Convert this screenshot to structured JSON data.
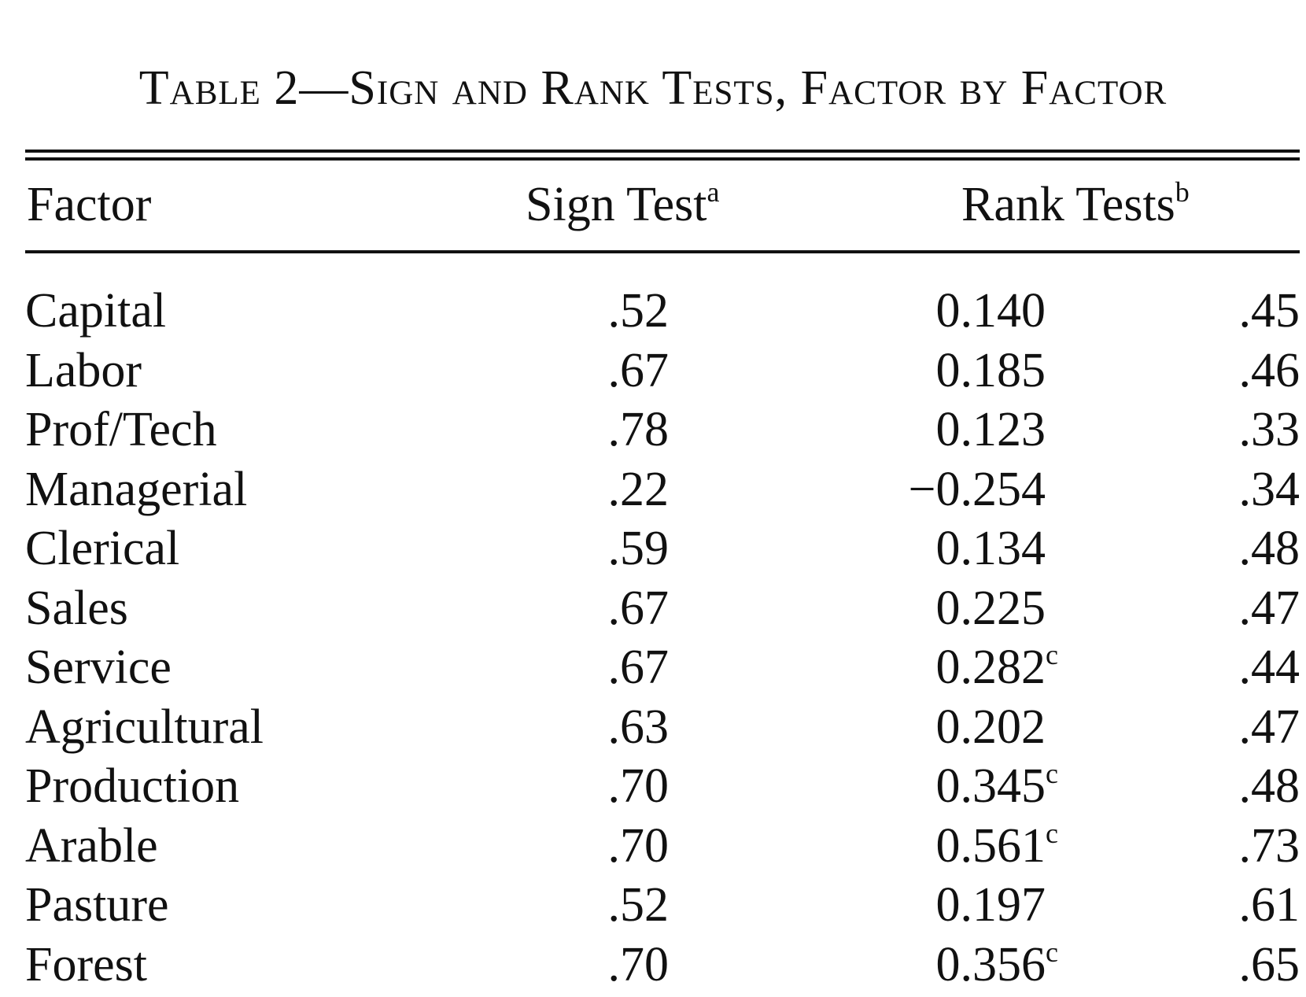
{
  "title": "Table 2—Sign and Rank Tests, Factor by Factor",
  "header": {
    "factor": "Factor",
    "sign_test": "Sign Test",
    "sign_test_note": "a",
    "rank_tests": "Rank Tests",
    "rank_tests_note": "b"
  },
  "rows": [
    {
      "factor": "Capital",
      "sign": ".52",
      "rank": "0.140",
      "rank_note": "",
      "third": ".45"
    },
    {
      "factor": "Labor",
      "sign": ".67",
      "rank": "0.185",
      "rank_note": "",
      "third": ".46"
    },
    {
      "factor": "Prof/Tech",
      "sign": ".78",
      "rank": "0.123",
      "rank_note": "",
      "third": ".33"
    },
    {
      "factor": "Managerial",
      "sign": ".22",
      "rank": "−0.254",
      "rank_note": "",
      "third": ".34"
    },
    {
      "factor": "Clerical",
      "sign": ".59",
      "rank": "0.134",
      "rank_note": "",
      "third": ".48"
    },
    {
      "factor": "Sales",
      "sign": ".67",
      "rank": "0.225",
      "rank_note": "",
      "third": ".47"
    },
    {
      "factor": "Service",
      "sign": ".67",
      "rank": "0.282",
      "rank_note": "c",
      "third": ".44"
    },
    {
      "factor": "Agricultural",
      "sign": ".63",
      "rank": "0.202",
      "rank_note": "",
      "third": ".47"
    },
    {
      "factor": "Production",
      "sign": ".70",
      "rank": "0.345",
      "rank_note": "c",
      "third": ".48"
    },
    {
      "factor": "Arable",
      "sign": ".70",
      "rank": "0.561",
      "rank_note": "c",
      "third": ".73"
    },
    {
      "factor": "Pasture",
      "sign": ".52",
      "rank": "0.197",
      "rank_note": "",
      "third": ".61"
    },
    {
      "factor": "Forest",
      "sign": ".70",
      "rank": "0.356",
      "rank_note": "c",
      "third": ".65"
    }
  ]
}
